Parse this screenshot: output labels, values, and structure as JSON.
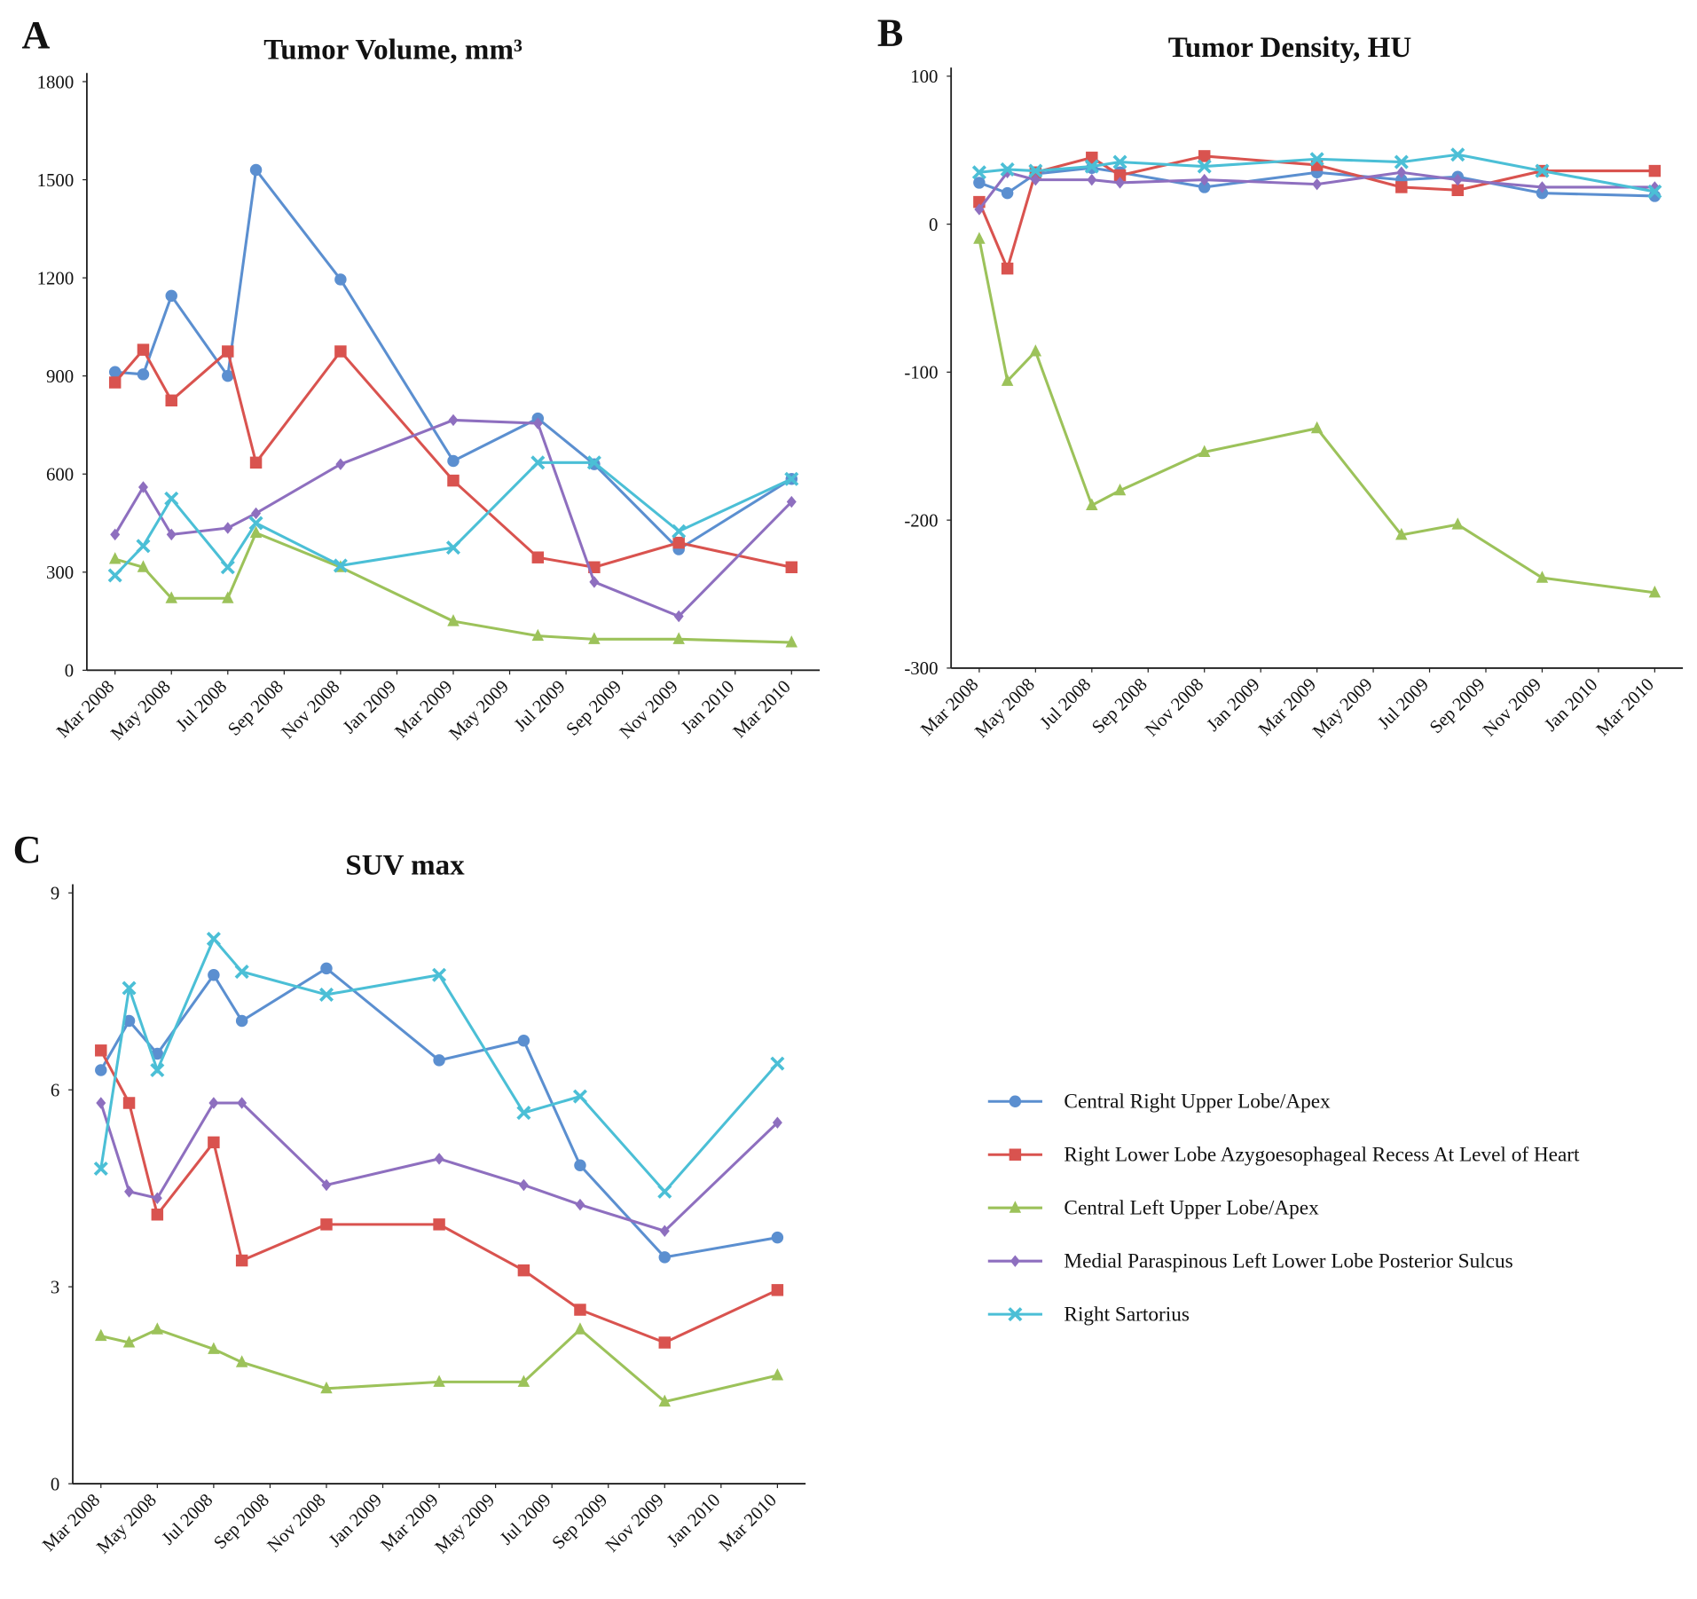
{
  "chart_data": [
    {
      "type": "line",
      "panel": "A",
      "title": "Tumor Volume, mm³",
      "x": [
        "2008-03",
        "2008-04",
        "2008-05",
        "2008-07",
        "2008-08",
        "2008-11",
        "2009-03",
        "2009-06",
        "2009-08",
        "2009-11",
        "2010-03"
      ],
      "xlim": [
        "2008-02",
        "2010-04"
      ],
      "xticks": [
        {
          "value": "2008-03",
          "label": "Mar 2008"
        },
        {
          "value": "2008-05",
          "label": "May 2008"
        },
        {
          "value": "2008-07",
          "label": "Jul 2008"
        },
        {
          "value": "2008-09",
          "label": "Sep 2008"
        },
        {
          "value": "2008-11",
          "label": "Nov 2008"
        },
        {
          "value": "2009-01",
          "label": "Jan 2009"
        },
        {
          "value": "2009-03",
          "label": "Mar 2009"
        },
        {
          "value": "2009-05",
          "label": "May 2009"
        },
        {
          "value": "2009-07",
          "label": "Jul 2009"
        },
        {
          "value": "2009-09",
          "label": "Sep 2009"
        },
        {
          "value": "2009-11",
          "label": "Nov 2009"
        },
        {
          "value": "2010-01",
          "label": "Jan 2010"
        },
        {
          "value": "2010-03",
          "label": "Mar 2010"
        }
      ],
      "ylim": [
        0,
        1800
      ],
      "yticks": [
        0,
        300,
        600,
        900,
        1200,
        1500,
        1800
      ],
      "series": [
        {
          "color": "#5b8fd0",
          "marker": "circle",
          "values": [
            912,
            905,
            1145,
            900,
            1530,
            1195,
            640,
            770,
            630,
            370,
            585
          ]
        },
        {
          "color": "#d9534f",
          "marker": "square",
          "values": [
            880,
            980,
            825,
            975,
            635,
            975,
            580,
            345,
            315,
            390,
            315
          ]
        },
        {
          "color": "#9cc25a",
          "marker": "triangle",
          "values": [
            340,
            315,
            220,
            220,
            420,
            315,
            150,
            105,
            95,
            95,
            85
          ]
        },
        {
          "color": "#8e6fbf",
          "marker": "diamond",
          "values": [
            415,
            560,
            415,
            435,
            480,
            630,
            765,
            755,
            270,
            165,
            515
          ]
        },
        {
          "color": "#4bbfd6",
          "marker": "x",
          "values": [
            290,
            380,
            525,
            315,
            450,
            320,
            375,
            635,
            635,
            425,
            585
          ]
        }
      ]
    },
    {
      "type": "line",
      "panel": "B",
      "title": "Tumor Density, HU",
      "x": [
        "2008-03",
        "2008-04",
        "2008-05",
        "2008-07",
        "2008-08",
        "2008-11",
        "2009-03",
        "2009-06",
        "2009-08",
        "2009-11",
        "2010-03"
      ],
      "xlim": [
        "2008-02",
        "2010-04"
      ],
      "xticks": [
        {
          "value": "2008-03",
          "label": "Mar 2008"
        },
        {
          "value": "2008-05",
          "label": "May 2008"
        },
        {
          "value": "2008-07",
          "label": "Jul 2008"
        },
        {
          "value": "2008-09",
          "label": "Sep 2008"
        },
        {
          "value": "2008-11",
          "label": "Nov 2008"
        },
        {
          "value": "2009-01",
          "label": "Jan 2009"
        },
        {
          "value": "2009-03",
          "label": "Mar 2009"
        },
        {
          "value": "2009-05",
          "label": "May 2009"
        },
        {
          "value": "2009-07",
          "label": "Jul 2009"
        },
        {
          "value": "2009-09",
          "label": "Sep 2009"
        },
        {
          "value": "2009-11",
          "label": "Nov 2009"
        },
        {
          "value": "2010-01",
          "label": "Jan 2010"
        },
        {
          "value": "2010-03",
          "label": "Mar 2010"
        }
      ],
      "ylim": [
        -300,
        100
      ],
      "yticks": [
        -300,
        -200,
        -100,
        0,
        100
      ],
      "series": [
        {
          "color": "#5b8fd0",
          "marker": "circle",
          "values": [
            28,
            21,
            34,
            38,
            35,
            25,
            35,
            30,
            32,
            21,
            19
          ]
        },
        {
          "color": "#d9534f",
          "marker": "square",
          "values": [
            15,
            -30,
            35,
            45,
            33,
            46,
            40,
            25,
            23,
            36,
            36
          ]
        },
        {
          "color": "#9cc25a",
          "marker": "triangle",
          "values": [
            -10,
            -106,
            -86,
            -190,
            -180,
            -154,
            -138,
            -210,
            -203,
            -239,
            -249
          ]
        },
        {
          "color": "#8e6fbf",
          "marker": "diamond",
          "values": [
            10,
            35,
            30,
            30,
            28,
            30,
            27,
            35,
            30,
            25,
            25
          ]
        },
        {
          "color": "#4bbfd6",
          "marker": "x",
          "values": [
            35,
            37,
            36,
            39,
            42,
            39,
            44,
            42,
            47,
            36,
            22
          ]
        }
      ]
    },
    {
      "type": "line",
      "panel": "C",
      "title": "SUV max",
      "legend": "right",
      "x": [
        "2008-03",
        "2008-04",
        "2008-05",
        "2008-07",
        "2008-08",
        "2008-11",
        "2009-03",
        "2009-06",
        "2009-08",
        "2009-11",
        "2010-03"
      ],
      "xlim": [
        "2008-02",
        "2010-04"
      ],
      "xticks": [
        {
          "value": "2008-03",
          "label": "Mar 2008"
        },
        {
          "value": "2008-05",
          "label": "May 2008"
        },
        {
          "value": "2008-07",
          "label": "Jul 2008"
        },
        {
          "value": "2008-09",
          "label": "Sep 2008"
        },
        {
          "value": "2008-11",
          "label": "Nov 2008"
        },
        {
          "value": "2009-01",
          "label": "Jan 2009"
        },
        {
          "value": "2009-03",
          "label": "Mar 2009"
        },
        {
          "value": "2009-05",
          "label": "May 2009"
        },
        {
          "value": "2009-07",
          "label": "Jul 2009"
        },
        {
          "value": "2009-09",
          "label": "Sep 2009"
        },
        {
          "value": "2009-11",
          "label": "Nov 2009"
        },
        {
          "value": "2010-01",
          "label": "Jan 2010"
        },
        {
          "value": "2010-03",
          "label": "Mar 2010"
        }
      ],
      "ylim": [
        0,
        9
      ],
      "yticks": [
        0,
        3,
        6,
        9
      ],
      "series": [
        {
          "name": "Central Right Upper Lobe/Apex",
          "color": "#5b8fd0",
          "marker": "circle",
          "values": [
            6.3,
            7.05,
            6.55,
            7.75,
            7.05,
            7.85,
            6.45,
            6.75,
            4.85,
            3.45,
            3.75
          ]
        },
        {
          "name": "Right Lower Lobe Azygoesophageal Recess At Level of Heart",
          "color": "#d9534f",
          "marker": "square",
          "values": [
            6.6,
            5.8,
            4.1,
            5.2,
            3.4,
            3.95,
            3.95,
            3.25,
            2.65,
            2.15,
            2.95
          ]
        },
        {
          "name": "Central Left Upper Lobe/Apex",
          "color": "#9cc25a",
          "marker": "triangle",
          "values": [
            2.25,
            2.15,
            2.35,
            2.05,
            1.85,
            1.45,
            1.55,
            1.55,
            2.35,
            1.25,
            1.65
          ]
        },
        {
          "name": "Medial Paraspinous Left Lower Lobe Posterior Sulcus",
          "color": "#8e6fbf",
          "marker": "diamond",
          "values": [
            5.8,
            4.45,
            4.35,
            5.8,
            5.8,
            4.55,
            4.95,
            4.55,
            4.25,
            3.85,
            5.5
          ]
        },
        {
          "name": "Right Sartorius",
          "color": "#4bbfd6",
          "marker": "x",
          "values": [
            4.8,
            7.55,
            6.3,
            8.3,
            7.8,
            7.45,
            7.75,
            5.65,
            5.9,
            4.45,
            6.4
          ]
        }
      ]
    }
  ]
}
